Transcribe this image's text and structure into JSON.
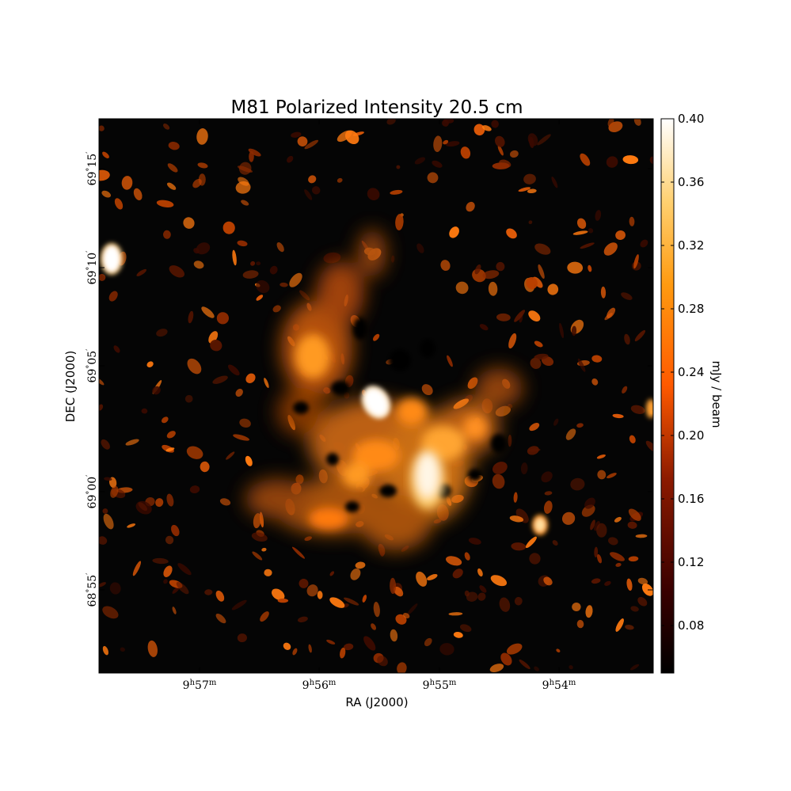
{
  "chart_data": {
    "type": "heatmap",
    "title": "M81 Polarized Intensity 20.5 cm",
    "xlabel": "RA (J2000)",
    "ylabel": "DEC (J2000)",
    "x_ticks": [
      {
        "label": "9h57m",
        "display": [
          "9",
          "h",
          "57",
          "m"
        ]
      },
      {
        "label": "9h56m",
        "display": [
          "9",
          "h",
          "56",
          "m"
        ]
      },
      {
        "label": "9h55m",
        "display": [
          "9",
          "h",
          "55",
          "m"
        ]
      },
      {
        "label": "9h54m",
        "display": [
          "9",
          "h",
          "54",
          "m"
        ]
      }
    ],
    "y_ticks": [
      {
        "label": "69°15′",
        "display": [
          "69",
          "°",
          "15",
          "′"
        ]
      },
      {
        "label": "69°10′",
        "display": [
          "69",
          "°",
          "10",
          "′"
        ]
      },
      {
        "label": "69°05′",
        "display": [
          "69",
          "°",
          "05",
          "′"
        ]
      },
      {
        "label": "69°00′",
        "display": [
          "69",
          "°",
          "00",
          "′"
        ]
      },
      {
        "label": "68°55′",
        "display": [
          "68",
          "°",
          "55",
          "′"
        ]
      }
    ],
    "colorbar": {
      "label": "mJy / beam",
      "min": 0.05,
      "max": 0.4,
      "ticks": [
        "0.08",
        "0.12",
        "0.16",
        "0.20",
        "0.24",
        "0.28",
        "0.32",
        "0.36",
        "0.40"
      ],
      "colormap": "afmhot",
      "colors": [
        "#000000",
        "#3a0000",
        "#8c1a00",
        "#ff5a00",
        "#ff9a10",
        "#ffd070",
        "#ffffff"
      ]
    },
    "grid": false
  }
}
